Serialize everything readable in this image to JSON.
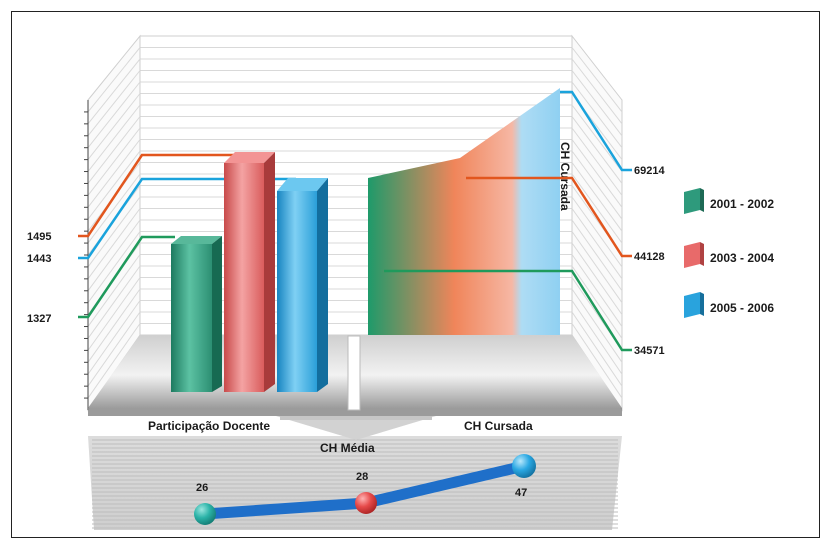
{
  "chart_data": [
    {
      "type": "bar",
      "categories": [
        "Participação Docente"
      ],
      "series": [
        {
          "name": "2001 - 2002",
          "values": [
            1327
          ]
        },
        {
          "name": "2003 - 2004",
          "values": [
            1495
          ]
        },
        {
          "name": "2005 - 2006",
          "values": [
            1443
          ]
        }
      ],
      "value_labels": [
        "1495",
        "1443",
        "1327"
      ]
    },
    {
      "type": "area",
      "categories": [
        "CH Cursada"
      ],
      "series": [
        {
          "name": "2001 - 2002",
          "values": [
            34571
          ]
        },
        {
          "name": "2003 - 2004",
          "values": [
            44128
          ]
        },
        {
          "name": "2005 - 2006",
          "values": [
            69214
          ]
        }
      ],
      "value_labels": [
        "69214",
        "44128",
        "34571"
      ],
      "vertical_label": "CH Cursada"
    },
    {
      "type": "line",
      "title": "CH Média",
      "x": [
        "2001 - 2002",
        "2003 - 2004",
        "2005 - 2006"
      ],
      "series": [
        {
          "values": [
            26,
            28,
            47
          ]
        }
      ],
      "value_labels": [
        "26",
        "28",
        "47"
      ]
    }
  ],
  "legend": [
    {
      "label": "2001 - 2002",
      "color": "#2e9a7c"
    },
    {
      "label": "2003 - 2004",
      "color": "#e86a6a"
    },
    {
      "label": "2005 - 2006",
      "color": "#29a3dd"
    }
  ],
  "floor_labels": {
    "left": "Participação Docente",
    "right": "CH Cursada"
  },
  "colors": {
    "green": "#1f9a5c",
    "red": "#e2561e",
    "blue": "#1aa3dc",
    "teal_dot": "#2bb3a8",
    "red_dot": "#e64a4a",
    "blue_dot": "#2aa8e3",
    "line_blue": "#1f6fc9"
  }
}
